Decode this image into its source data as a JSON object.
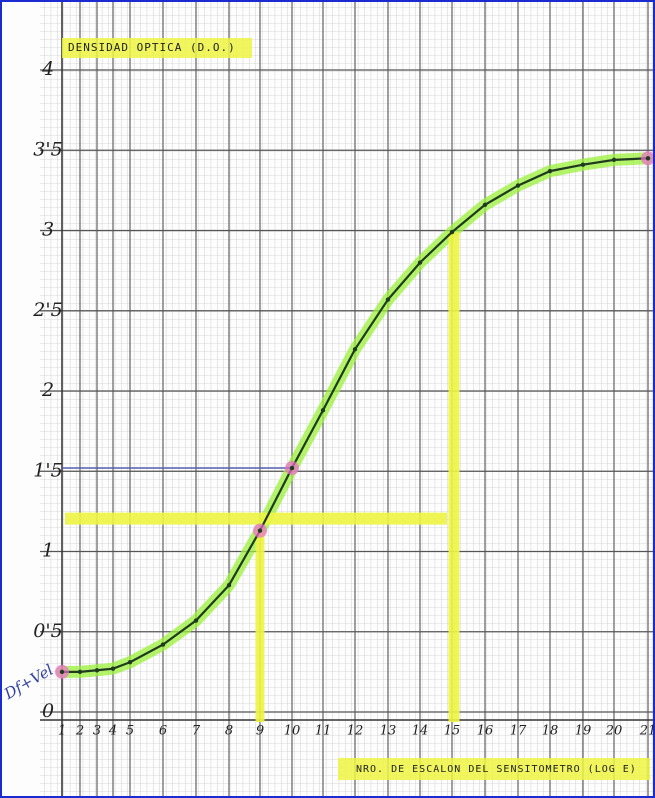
{
  "chart_data": {
    "type": "line",
    "title": "DENSIDAD OPTICA (D.O.)",
    "x_label": "NRO. DE ESCALON DEL SENSITOMETRO (LOG E)",
    "annotation": "Df+Vel",
    "categories": [
      "1",
      "2",
      "3",
      "4",
      "5",
      "6",
      "7",
      "8",
      "9",
      "10",
      "11",
      "12",
      "13",
      "14",
      "15",
      "16",
      "17",
      "18",
      "19",
      "20",
      "21"
    ],
    "series": [
      {
        "name": "D.O.",
        "color": "#1f3a1f",
        "values": [
          0.25,
          0.25,
          0.26,
          0.27,
          0.31,
          0.42,
          0.57,
          0.79,
          1.13,
          1.52,
          1.88,
          2.26,
          2.57,
          2.8,
          2.99,
          3.16,
          3.28,
          3.37,
          3.41,
          3.44,
          3.45
        ]
      }
    ],
    "ylim": [
      0,
      4
    ],
    "yticks": [
      0,
      {
        "value": 0.5,
        "label": "0'5"
      },
      1,
      {
        "value": 1.5,
        "label": "1'5"
      },
      2,
      {
        "value": 2.5,
        "label": "2'5"
      },
      3,
      {
        "value": 3.5,
        "label": "3'5"
      },
      4
    ],
    "grid": true
  }
}
